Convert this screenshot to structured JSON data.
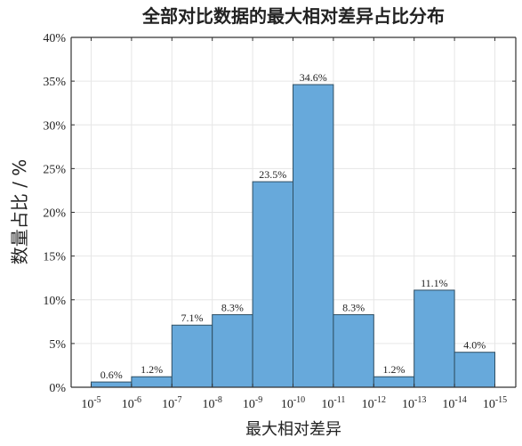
{
  "chart_data": {
    "type": "bar",
    "title": "全部对比数据的最大相对差异占比分布",
    "xlabel": "最大相对差异",
    "ylabel": "数量占比 / %",
    "x_ticks": [
      {
        "base": "10",
        "exp": "-5"
      },
      {
        "base": "10",
        "exp": "-6"
      },
      {
        "base": "10",
        "exp": "-7"
      },
      {
        "base": "10",
        "exp": "-8"
      },
      {
        "base": "10",
        "exp": "-9"
      },
      {
        "base": "10",
        "exp": "-10"
      },
      {
        "base": "10",
        "exp": "-11"
      },
      {
        "base": "10",
        "exp": "-12"
      },
      {
        "base": "10",
        "exp": "-13"
      },
      {
        "base": "10",
        "exp": "-14"
      },
      {
        "base": "10",
        "exp": "-15"
      }
    ],
    "values": [
      0.6,
      1.2,
      7.1,
      8.3,
      23.5,
      34.6,
      8.3,
      1.2,
      11.1,
      4.0
    ],
    "value_labels": [
      "0.6%",
      "1.2%",
      "7.1%",
      "8.3%",
      "23.5%",
      "34.6%",
      "8.3%",
      "1.2%",
      "11.1%",
      "4.0%"
    ],
    "y_ticks": [
      "0%",
      "5%",
      "10%",
      "15%",
      "20%",
      "25%",
      "30%",
      "35%",
      "40%"
    ],
    "ylim": [
      0,
      40
    ],
    "grid": true,
    "colors": {
      "bar_fill": "#67a9db",
      "bar_stroke": "#2f4f63",
      "axis": "#333333",
      "grid": "#e6e6e6",
      "text": "#222222"
    }
  }
}
